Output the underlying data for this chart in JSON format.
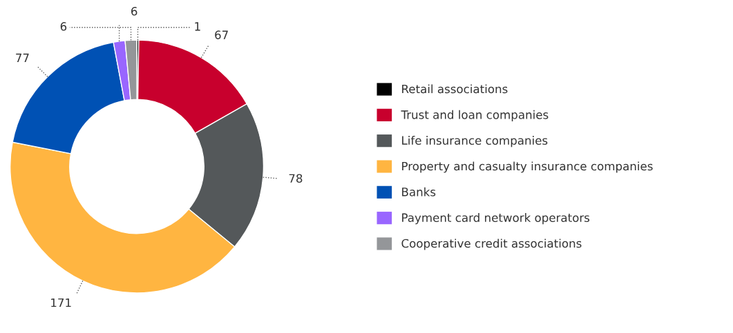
{
  "chart_data": {
    "type": "donut",
    "categories": [
      "Retail associations",
      "Trust and loan companies",
      "Life insurance companies",
      "Property and casualty insurance companies",
      "Banks",
      "Payment card network operators",
      "Cooperative credit associations"
    ],
    "values": [
      1,
      67,
      78,
      171,
      77,
      6,
      6
    ],
    "colors": [
      "#000000",
      "#c8002d",
      "#54585a",
      "#ffb541",
      "#0051b4",
      "#9966ff",
      "#949699"
    ],
    "data_labels": true,
    "legend": "right"
  }
}
